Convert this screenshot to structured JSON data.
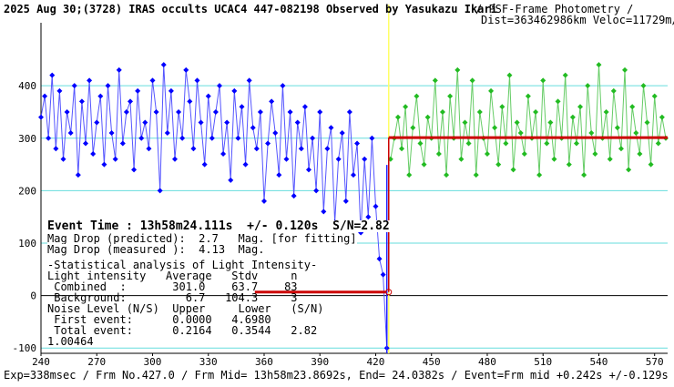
{
  "header": {
    "title": "2025 Aug 30;(3728) IRAS occults UCAC4 447-082198 Observed by Yasukazu Ikari",
    "method_line1": "/ PSF-Frame Photometry /",
    "method_line2": "Dist=363462986km Veloc=11729m/sec"
  },
  "stats": {
    "event_time": "Event Time : 13h58m24.111s  +/- 0.120s  S/N=2.82",
    "mag_drop_predicted": "Mag Drop (predicted):  2.7   Mag. [for fitting]",
    "mag_drop_measured": "Mag Drop (measured ):  4.13  Mag.",
    "section_title": "-Statistical analysis of Light Intensity-",
    "header_row": "Light intensity   Average   Stdv     n",
    "combined_row": " Combined  :       301.0    63.7    83",
    "background_row": " Background:         6.7   104.3     3",
    "noise_header": "Noise Level (N/S)  Upper     Lower   (S/N)",
    "first_event": " First event:      0.0000   4.6980",
    "total_event": " Total event:      0.2164   0.3544   2.82",
    "misc": "1.00464"
  },
  "footer": {
    "text": "Exp=338msec / Frm No.427.0 / Frm Mid= 13h58m23.8692s, End= 24.0382s / Event=Frm mid +0.242s +/-0.129s / CctAngle=0.0deg"
  },
  "chart_data": {
    "type": "scatter",
    "title": "2025 Aug 30;(3728) IRAS occults UCAC4 447-082198 Observed by Yasukazu Ikari",
    "xlabel": "",
    "ylabel": "",
    "xlim": [
      240,
      577
    ],
    "ylim": [
      -110,
      520
    ],
    "x_ticks": [
      240,
      270,
      300,
      330,
      360,
      390,
      420,
      450,
      480,
      510,
      540,
      570
    ],
    "y_ticks": [
      -100,
      0,
      100,
      200,
      300,
      400
    ],
    "event_frame": 427,
    "grid": true,
    "colors": {
      "series_before": "#0000ff",
      "series_after": "#22bb22",
      "line_before": "#5555ff",
      "line_after": "#66cc66",
      "model": "#cc0000",
      "event_line": "#ffff66",
      "event_vline": "#2222ff",
      "grid": "#66dddd"
    },
    "model": {
      "baseline_level": 301.0,
      "occulted_level": 6.7,
      "x_start": 240,
      "x_drop": 426,
      "x_rise": 427,
      "x_end": 577
    },
    "series": [
      {
        "name": "before",
        "x": [
          240,
          242,
          244,
          246,
          248,
          250,
          252,
          254,
          256,
          258,
          260,
          262,
          264,
          266,
          268,
          270,
          272,
          274,
          276,
          278,
          280,
          282,
          284,
          286,
          288,
          290,
          292,
          294,
          296,
          298,
          300,
          302,
          304,
          306,
          308,
          310,
          312,
          314,
          316,
          318,
          320,
          322,
          324,
          326,
          328,
          330,
          332,
          334,
          336,
          338,
          340,
          342,
          344,
          346,
          348,
          350,
          352,
          354,
          356,
          358,
          360,
          362,
          364,
          366,
          368,
          370,
          372,
          374,
          376,
          378,
          380,
          382,
          384,
          386,
          388,
          390,
          392,
          394,
          396,
          398,
          400,
          402,
          404,
          406,
          408,
          410,
          412,
          414,
          416,
          418,
          420,
          422,
          424,
          426
        ],
        "values": [
          340,
          380,
          300,
          420,
          280,
          390,
          260,
          350,
          310,
          400,
          230,
          370,
          290,
          410,
          270,
          330,
          380,
          250,
          400,
          310,
          260,
          430,
          290,
          350,
          370,
          240,
          390,
          300,
          330,
          280,
          410,
          350,
          200,
          440,
          310,
          390,
          260,
          350,
          300,
          430,
          370,
          280,
          410,
          330,
          250,
          380,
          300,
          350,
          400,
          270,
          330,
          220,
          390,
          300,
          360,
          250,
          410,
          320,
          280,
          350,
          180,
          290,
          370,
          310,
          230,
          400,
          260,
          350,
          190,
          330,
          280,
          360,
          240,
          300,
          200,
          350,
          160,
          280,
          320,
          140,
          260,
          310,
          180,
          350,
          230,
          290,
          120,
          260,
          150,
          300,
          170,
          70,
          40,
          -100
        ]
      },
      {
        "name": "after",
        "x": [
          428,
          430,
          432,
          434,
          436,
          438,
          440,
          442,
          444,
          446,
          448,
          450,
          452,
          454,
          456,
          458,
          460,
          462,
          464,
          466,
          468,
          470,
          472,
          474,
          476,
          478,
          480,
          482,
          484,
          486,
          488,
          490,
          492,
          494,
          496,
          498,
          500,
          502,
          504,
          506,
          508,
          510,
          512,
          514,
          516,
          518,
          520,
          522,
          524,
          526,
          528,
          530,
          532,
          534,
          536,
          538,
          540,
          542,
          544,
          546,
          548,
          550,
          552,
          554,
          556,
          558,
          560,
          562,
          564,
          566,
          568,
          570,
          572,
          574,
          576
        ],
        "values": [
          260,
          300,
          340,
          280,
          360,
          230,
          320,
          380,
          290,
          250,
          340,
          300,
          410,
          270,
          350,
          230,
          380,
          300,
          430,
          260,
          330,
          290,
          410,
          230,
          350,
          300,
          270,
          390,
          320,
          250,
          360,
          290,
          420,
          240,
          330,
          310,
          270,
          380,
          300,
          350,
          230,
          410,
          290,
          330,
          260,
          370,
          300,
          420,
          250,
          340,
          290,
          360,
          230,
          400,
          310,
          270,
          440,
          300,
          350,
          260,
          390,
          320,
          280,
          430,
          240,
          360,
          310,
          270,
          400,
          330,
          250,
          380,
          290,
          340,
          300
        ]
      }
    ]
  }
}
